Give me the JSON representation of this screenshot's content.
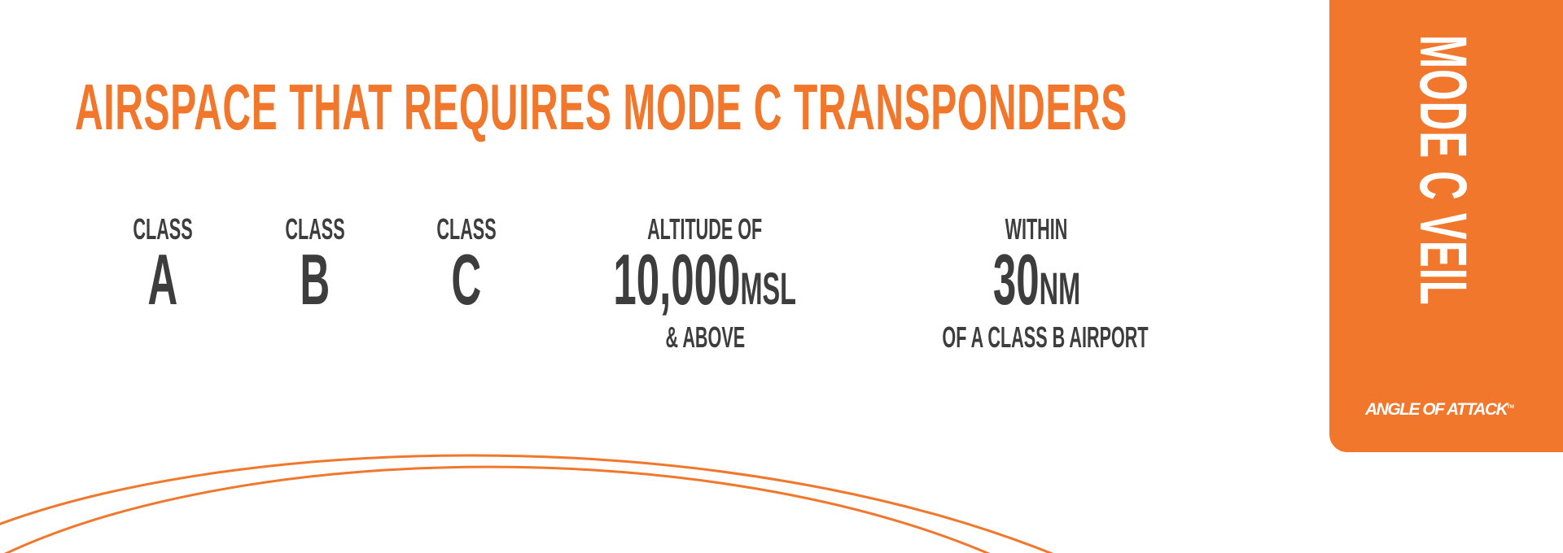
{
  "title": "AIRSPACE THAT REQUIRES MODE C TRANSPONDERS",
  "columns": [
    {
      "label": "CLASS",
      "value": "A"
    },
    {
      "label": "CLASS",
      "value": "B"
    },
    {
      "label": "CLASS",
      "value": "C"
    },
    {
      "label": "ALTITUDE OF",
      "value": "10,000",
      "unit": "MSL",
      "sub": "& ABOVE"
    },
    {
      "label": "WITHIN",
      "value": "30",
      "unit": "NM",
      "sub": "OF A CLASS B AIRPORT"
    }
  ],
  "side_panel": {
    "vertical_title": "MODE C VEIL",
    "logo_text": "ANGLE OF ATTACK",
    "logo_mark": "TM"
  },
  "colors": {
    "accent": "#F0772B",
    "text": "#3d3d3d",
    "background": "#ffffff"
  }
}
